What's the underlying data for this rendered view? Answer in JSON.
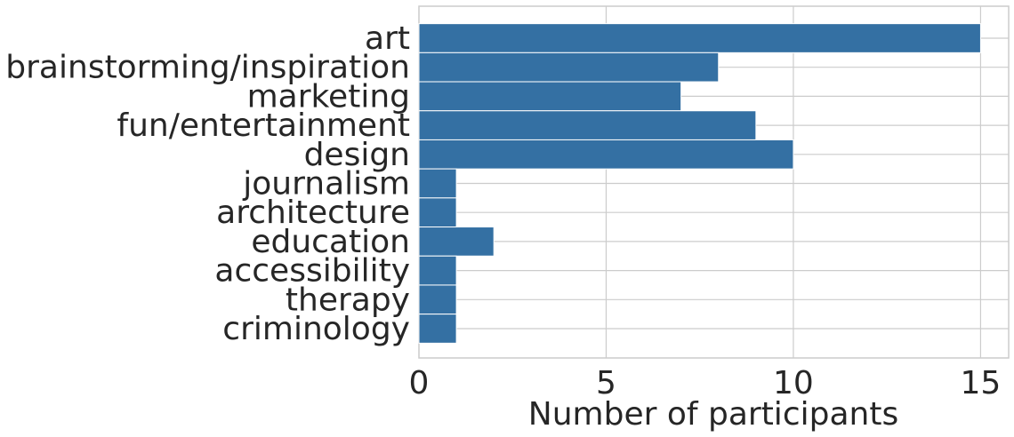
{
  "chart_data": {
    "type": "bar",
    "orientation": "horizontal",
    "categories": [
      "art",
      "brainstorming/inspiration",
      "marketing",
      "fun/entertainment",
      "design",
      "journalism",
      "architecture",
      "education",
      "accessibility",
      "therapy",
      "criminology"
    ],
    "values": [
      15,
      8,
      7,
      9,
      10,
      1,
      1,
      2,
      1,
      1,
      1
    ],
    "xlabel": "Number of participants",
    "ylabel": "",
    "title": "",
    "xlim": [
      0,
      15.75
    ],
    "xticks": [
      "0",
      "5",
      "10",
      "15"
    ],
    "grid": true,
    "bar_color": "#3470a3",
    "grid_color": "#cccccc"
  }
}
